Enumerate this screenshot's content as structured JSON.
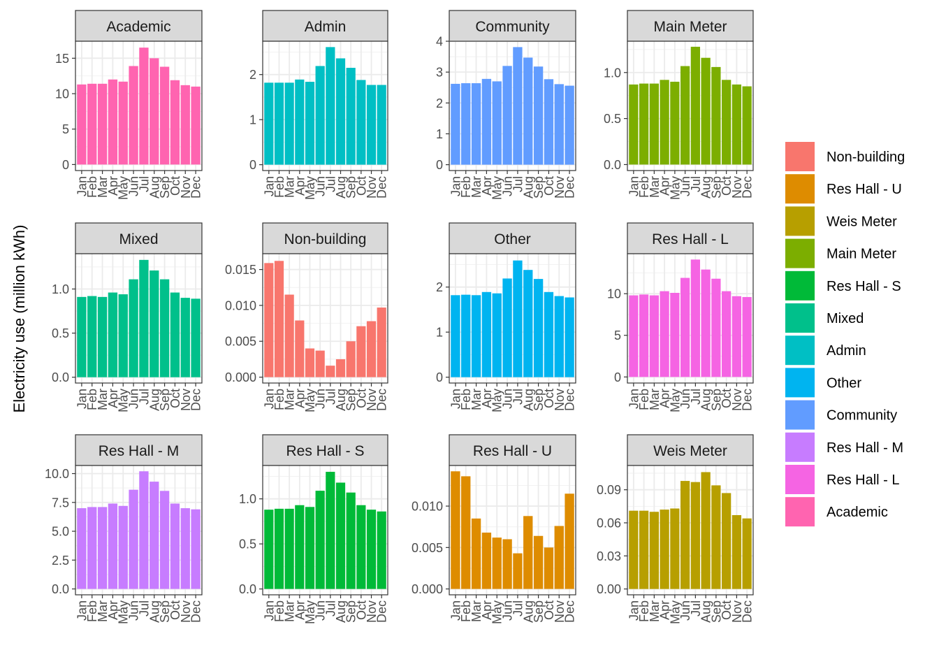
{
  "chart_data": {
    "type": "bar",
    "facet_layout": "3 rows x 4 columns, independent y scales",
    "ylabel": "Electricity use (million kWh)",
    "xlabel": "",
    "categories": [
      "Jan",
      "Feb",
      "Mar",
      "Apr",
      "May",
      "Jun",
      "Jul",
      "Aug",
      "Sep",
      "Oct",
      "Nov",
      "Dec"
    ],
    "legend": {
      "position": "right",
      "items": [
        {
          "name": "Non-building",
          "color": "#F8766D"
        },
        {
          "name": "Res Hall - U",
          "color": "#DE8C00"
        },
        {
          "name": "Weis Meter",
          "color": "#B79F00"
        },
        {
          "name": "Main Meter",
          "color": "#7CAE00"
        },
        {
          "name": "Res Hall - S",
          "color": "#00BA38"
        },
        {
          "name": "Mixed",
          "color": "#00C08B"
        },
        {
          "name": "Admin",
          "color": "#00BFC4"
        },
        {
          "name": "Other",
          "color": "#00B4F0"
        },
        {
          "name": "Community",
          "color": "#619CFF"
        },
        {
          "name": "Res Hall - M",
          "color": "#C77CFF"
        },
        {
          "name": "Res Hall - L",
          "color": "#F564E3"
        },
        {
          "name": "Academic",
          "color": "#FF64B0"
        }
      ]
    },
    "panels": [
      {
        "name": "Academic",
        "color": "#FF64B0",
        "ylim": [
          -0.85,
          17.4
        ],
        "yticks": [
          0,
          5,
          10,
          15
        ],
        "ytick_labels": [
          "0",
          "5",
          "10",
          "15"
        ],
        "values": [
          11.3,
          11.4,
          11.4,
          12.0,
          11.7,
          13.9,
          16.5,
          15.0,
          13.8,
          11.9,
          11.2,
          11.0
        ]
      },
      {
        "name": "Admin",
        "color": "#00BFC4",
        "ylim": [
          -0.13,
          2.74
        ],
        "yticks": [
          0,
          1,
          2
        ],
        "ytick_labels": [
          "0",
          "1",
          "2"
        ],
        "values": [
          1.82,
          1.82,
          1.82,
          1.89,
          1.84,
          2.19,
          2.61,
          2.36,
          2.15,
          1.88,
          1.77,
          1.77
        ]
      },
      {
        "name": "Community",
        "color": "#619CFF",
        "ylim": [
          -0.19,
          4.0
        ],
        "yticks": [
          0,
          1,
          2,
          3,
          4
        ],
        "ytick_labels": [
          "0",
          "1",
          "2",
          "3",
          "4"
        ],
        "values": [
          2.62,
          2.64,
          2.64,
          2.78,
          2.7,
          3.2,
          3.81,
          3.47,
          3.18,
          2.77,
          2.61,
          2.56
        ]
      },
      {
        "name": "Main Meter",
        "color": "#7CAE00",
        "ylim": [
          -0.065,
          1.34
        ],
        "yticks": [
          0.0,
          0.5,
          1.0
        ],
        "ytick_labels": [
          "0.0",
          "0.5",
          "1.0"
        ],
        "values": [
          0.87,
          0.88,
          0.88,
          0.92,
          0.9,
          1.07,
          1.28,
          1.16,
          1.06,
          0.92,
          0.87,
          0.85
        ]
      },
      {
        "name": "Mixed",
        "color": "#00C08B",
        "ylim": [
          -0.066,
          1.4
        ],
        "yticks": [
          0.0,
          0.5,
          1.0
        ],
        "ytick_labels": [
          "0.0",
          "0.5",
          "1.0"
        ],
        "values": [
          0.91,
          0.92,
          0.91,
          0.96,
          0.94,
          1.11,
          1.33,
          1.21,
          1.11,
          0.96,
          0.9,
          0.89
        ]
      },
      {
        "name": "Non-building",
        "color": "#F8766D",
        "ylim": [
          -0.00082,
          0.0172
        ],
        "yticks": [
          0.0,
          0.005,
          0.01,
          0.015
        ],
        "ytick_labels": [
          "0.000",
          "0.005",
          "0.010",
          "0.015"
        ],
        "values": [
          0.0159,
          0.0162,
          0.0115,
          0.0079,
          0.004,
          0.0037,
          0.0016,
          0.0025,
          0.005,
          0.0071,
          0.0078,
          0.0097
        ]
      },
      {
        "name": "Other",
        "color": "#00B4F0",
        "ylim": [
          -0.13,
          2.74
        ],
        "yticks": [
          0,
          1,
          2
        ],
        "ytick_labels": [
          "0",
          "1",
          "2"
        ],
        "values": [
          1.82,
          1.83,
          1.82,
          1.89,
          1.86,
          2.19,
          2.59,
          2.38,
          2.18,
          1.89,
          1.8,
          1.77
        ]
      },
      {
        "name": "Res Hall - L",
        "color": "#F564E3",
        "ylim": [
          -0.73,
          14.8
        ],
        "yticks": [
          0,
          5,
          10
        ],
        "ytick_labels": [
          "0",
          "5",
          "10"
        ],
        "values": [
          9.8,
          9.9,
          9.8,
          10.3,
          10.1,
          11.9,
          14.1,
          12.9,
          11.8,
          10.3,
          9.7,
          9.6
        ]
      },
      {
        "name": "Res Hall - M",
        "color": "#C77CFF",
        "ylim": [
          -0.51,
          10.7
        ],
        "yticks": [
          0,
          2.5,
          5.0,
          7.5,
          10.0
        ],
        "ytick_labels": [
          "0.0",
          "2.5",
          "5.0",
          "7.5",
          "10.0"
        ],
        "values": [
          7.0,
          7.1,
          7.1,
          7.4,
          7.2,
          8.6,
          10.2,
          9.3,
          8.5,
          7.4,
          7.0,
          6.9
        ]
      },
      {
        "name": "Res Hall - S",
        "color": "#00BA38",
        "ylim": [
          -0.065,
          1.37
        ],
        "yticks": [
          0.0,
          0.5,
          1.0
        ],
        "ytick_labels": [
          "0.0",
          "0.5",
          "1.0"
        ],
        "values": [
          0.88,
          0.89,
          0.89,
          0.93,
          0.91,
          1.09,
          1.3,
          1.18,
          1.07,
          0.93,
          0.88,
          0.86
        ]
      },
      {
        "name": "Res Hall - U",
        "color": "#DE8C00",
        "ylim": [
          -0.00071,
          0.0149
        ],
        "yticks": [
          0.0,
          0.005,
          0.01
        ],
        "ytick_labels": [
          "0.000",
          "0.005",
          "0.010"
        ],
        "values": [
          0.0142,
          0.0136,
          0.0085,
          0.0068,
          0.0062,
          0.006,
          0.0043,
          0.0088,
          0.0064,
          0.005,
          0.0076,
          0.0115
        ]
      },
      {
        "name": "Weis Meter",
        "color": "#B79F00",
        "ylim": [
          -0.0053,
          0.112
        ],
        "yticks": [
          0.0,
          0.03,
          0.06,
          0.09
        ],
        "ytick_labels": [
          "0.00",
          "0.03",
          "0.06",
          "0.09"
        ],
        "values": [
          0.071,
          0.071,
          0.07,
          0.072,
          0.073,
          0.098,
          0.097,
          0.106,
          0.094,
          0.087,
          0.067,
          0.064
        ]
      }
    ]
  }
}
